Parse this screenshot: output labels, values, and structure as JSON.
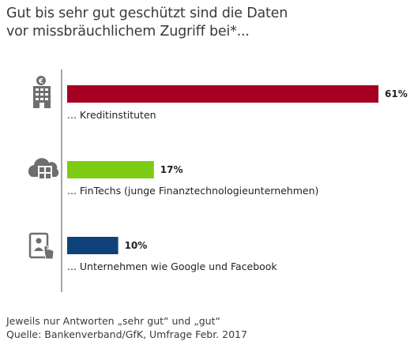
{
  "title_lines": [
    "Gut bis sehr gut geschützt sind die Daten",
    "vor missbräuchlichem Zugriff bei*..."
  ],
  "footer_lines": [
    "Jeweils nur Antworten „sehr gut“ und „gut“",
    "Quelle: Bankenverband/GfK, Umfrage Febr. 2017"
  ],
  "chart_data": {
    "type": "bar",
    "orientation": "horizontal",
    "title": "Gut bis sehr gut geschützt sind die Daten vor missbräuchlichem Zugriff bei*...",
    "categories": [
      "... Kreditinstituten",
      "... FinTechs (junge Finanztechnologieunternehmen)",
      "... Unternehmen wie Google und Facebook"
    ],
    "values": [
      61,
      17,
      10
    ],
    "value_labels": [
      "61%",
      "17%",
      "10%"
    ],
    "unit": "%",
    "bar_colors": [
      "#a50021",
      "#7dcb12",
      "#0f4278"
    ],
    "icons": [
      "bank-building-icon",
      "cloud-calculator-icon",
      "tablet-user-icon"
    ],
    "xlim": [
      0,
      61
    ],
    "grid": false,
    "legend": "none"
  }
}
